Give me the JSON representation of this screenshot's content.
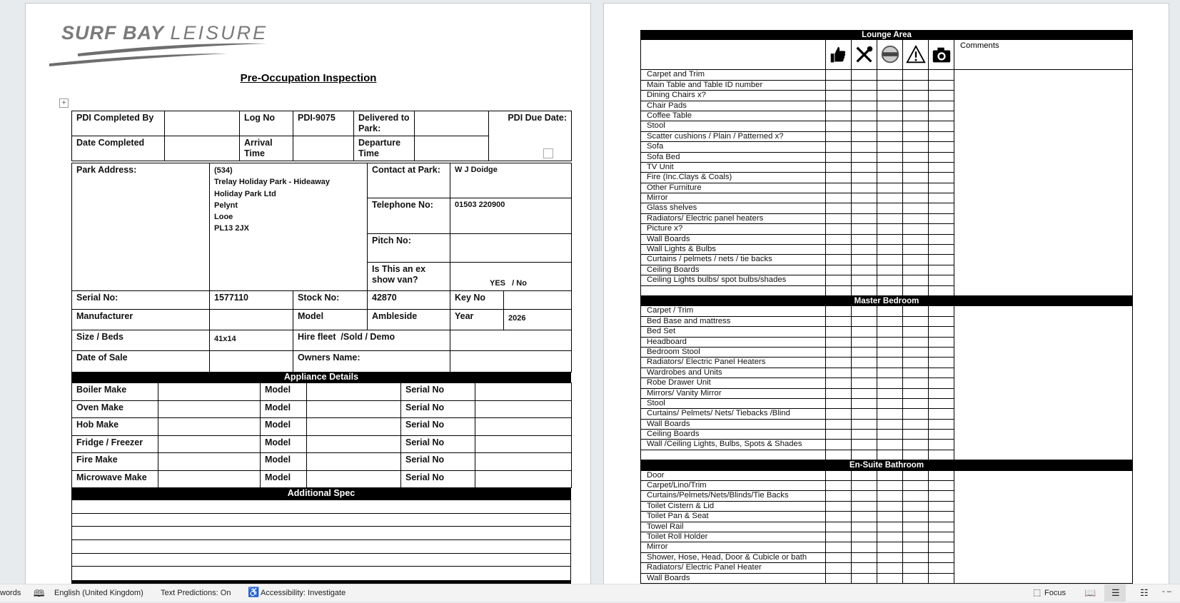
{
  "logo": {
    "text_bold": "SURF BAY",
    "text_light": "LEISURE"
  },
  "title": "Pre-Occupation Inspection",
  "header_table": {
    "pdi_completed_by": "PDI Completed By",
    "log_no_label": "Log No",
    "log_no": "PDI-9075",
    "delivered_label": "Delivered to Park:",
    "pdi_due_label": "PDI Due Date:",
    "date_completed": "Date Completed",
    "arrival_label": "Arrival Time",
    "departure_label": "Departure Time"
  },
  "park": {
    "address_label": "Park Address:",
    "address_lines": [
      "(534)",
      "Trelay Holiday Park - Hideaway",
      "Holiday Park Ltd",
      "Pelynt",
      "Looe",
      "PL13 2JX"
    ],
    "contact_label": "Contact at Park:",
    "contact": "W J Doidge",
    "telephone_label": "Telephone No:",
    "telephone": "01503 220900",
    "pitch_label": "Pitch No:",
    "ex_show_label": "Is This an ex show van?",
    "ex_show_value": "YES   / No",
    "serial_label": "Serial No:",
    "serial": "1577110",
    "stock_label": "Stock No:",
    "stock": "42870",
    "key_label": "Key No",
    "manufacturer_label": "Manufacturer",
    "model_label": "Model",
    "model": "Ambleside",
    "year_label": "Year",
    "year": "2026",
    "size_label": "Size / Beds",
    "size": "41x14",
    "hire_label": "Hire fleet  /Sold / Demo",
    "date_sale_label": "Date of Sale",
    "owners_label": "Owners Name:"
  },
  "appliances": {
    "title": "Appliance Details",
    "model_label": "Model",
    "serial_label": "Serial No",
    "rows": [
      "Boiler Make",
      "Oven Make",
      "Hob Make",
      "Fridge / Freezer",
      "Fire Make",
      "Microwave Make"
    ]
  },
  "additional_spec": {
    "title": "Additional Spec"
  },
  "checklist": {
    "comments_label": "Comments",
    "icons": [
      "thumbs-up-icon",
      "tools-icon",
      "warranty-stamp-icon",
      "warning-icon",
      "camera-icon"
    ],
    "sections": [
      {
        "title": "Lounge Area",
        "items": [
          "Carpet and Trim",
          "Main Table and Table ID number",
          "Dining Chairs x?",
          "Chair Pads",
          "Coffee Table",
          "Stool",
          "Scatter cushions / Plain / Patterned x?",
          "Sofa",
          "Sofa Bed",
          "TV Unit",
          "Fire (Inc.Clays & Coals)",
          "Other Furniture",
          "Mirror",
          "Glass shelves",
          "Radiators/ Electric panel heaters",
          "Picture x?",
          "Wall Boards",
          "Wall Lights & Bulbs",
          "Curtains / pelmets / nets / tie backs",
          "Ceiling Boards",
          "Ceiling Lights bulbs/ spot bulbs/shades",
          ""
        ]
      },
      {
        "title": "Master Bedroom",
        "items": [
          "Carpet / Trim",
          "Bed Base and mattress",
          "Bed Set",
          "Headboard",
          "Bedroom Stool",
          "Radiators/ Electric Panel Heaters",
          "Wardrobes and Units",
          "Robe Drawer Unit",
          "Mirrors/ Vanity Mirror",
          "Stool",
          "Curtains/ Pelmets/ Nets/ Tiebacks /Blind",
          "Wall Boards",
          "Ceiling Boards",
          "Wall /Ceiling Lights, Bulbs, Spots & Shades",
          ""
        ]
      },
      {
        "title": "En-Suite Bathroom",
        "items": [
          "Door",
          "Carpet/Lino/Trim",
          "Curtains/Pelmets/Nets/Blinds/Tie Backs",
          "Toilet Cistern & Lid",
          "Toilet Pan & Seat",
          "Towel Rail",
          "Toilet Roll Holder",
          "Mirror",
          "Shower, Hose, Head, Door & Cubicle or bath",
          "Radiators/ Electric Panel Heater",
          "Wall Boards"
        ]
      }
    ]
  },
  "statusbar": {
    "words": "words",
    "language": "English (United Kingdom)",
    "text_predictions": "Text Predictions: On",
    "accessibility": "Accessibility: Investigate",
    "focus": "Focus"
  }
}
